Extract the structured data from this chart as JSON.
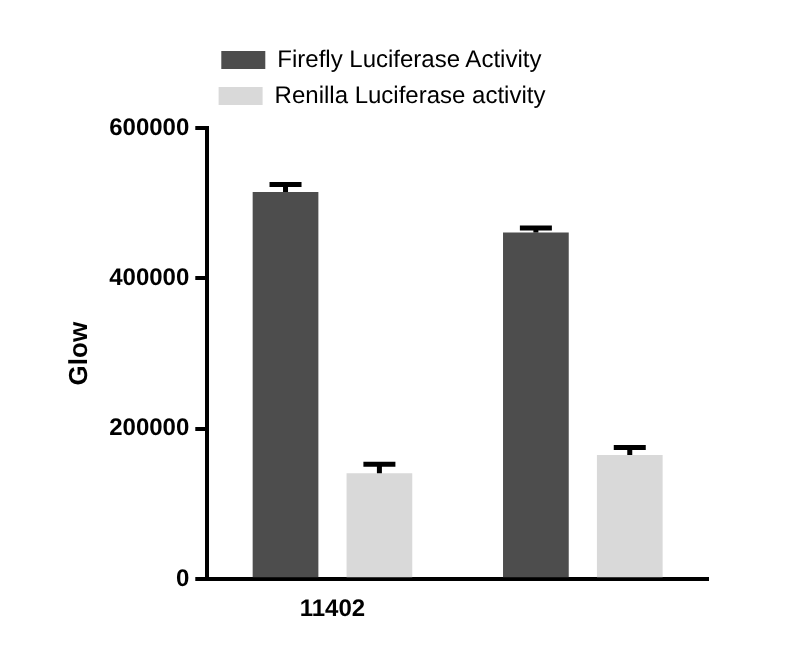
{
  "chart_data": {
    "type": "bar",
    "ylabel": "Glow",
    "categories": [
      "11402",
      null
    ],
    "series": [
      {
        "name": "Firefly Luciferase Activity",
        "color": "#4d4d4d",
        "values": [
          515000,
          461000
        ],
        "errors": [
          [
            515000,
            525000
          ],
          [
            461000,
            467000
          ]
        ]
      },
      {
        "name": "Renilla Luciferase activity",
        "color": "#d9d9d9",
        "values": [
          141000,
          165000
        ],
        "errors": [
          [
            141000,
            153000
          ],
          [
            165000,
            175000
          ]
        ]
      }
    ],
    "ylim": [
      0,
      600000
    ],
    "yticks": [
      0,
      200000,
      400000,
      600000
    ],
    "grid": false,
    "legend": "top"
  }
}
